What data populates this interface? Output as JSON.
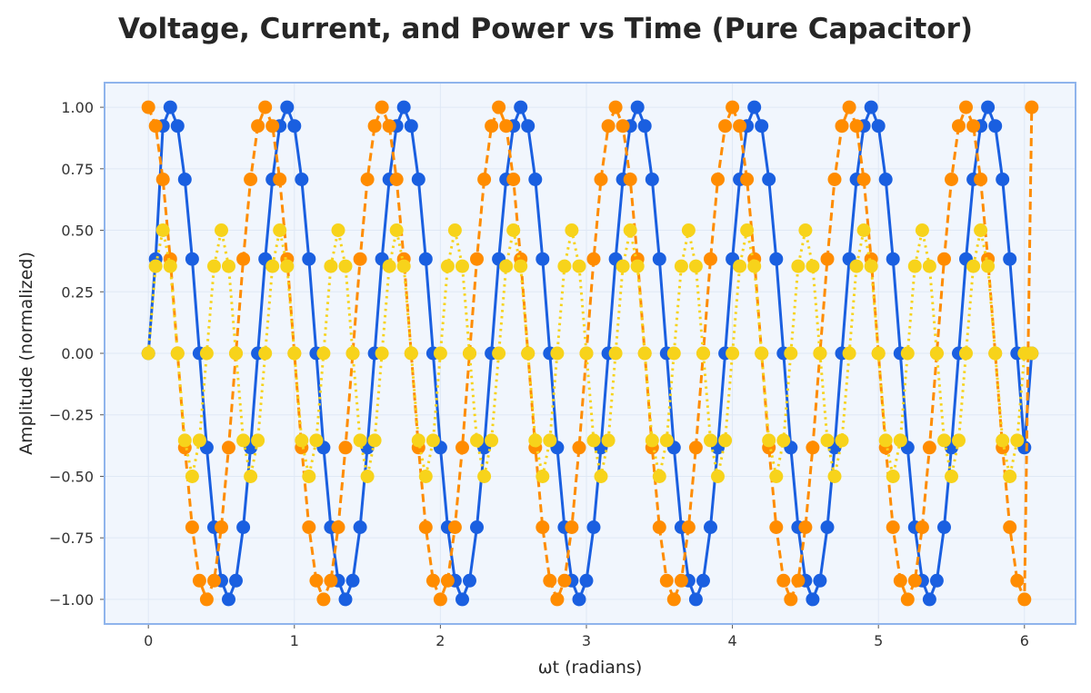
{
  "chart_data": {
    "type": "line",
    "title": "Voltage, Current, and Power vs Time (Pure Capacitor)",
    "xlabel": "ωt (radians)",
    "ylabel": "Amplitude (normalized)",
    "xlim": [
      -0.3,
      6.35
    ],
    "ylim": [
      -1.1,
      1.1
    ],
    "xticks": [
      0,
      1,
      2,
      3,
      4,
      5,
      6
    ],
    "xtick_labels": [
      "0",
      "1",
      "2",
      "3",
      "4",
      "5",
      "6"
    ],
    "yticks": [
      1.0,
      0.75,
      0.5,
      0.25,
      0.0,
      -0.25,
      -0.5,
      -0.75,
      -1.0
    ],
    "ytick_labels": [
      "1.00",
      "0.75",
      "0.50",
      "0.25",
      "0.00",
      "−0.25",
      "−0.50",
      "−0.75",
      "−1.00"
    ],
    "grid": true,
    "legend": "none",
    "x": [
      0.0,
      0.05,
      0.1,
      0.15,
      0.2,
      0.25,
      0.3,
      0.35,
      0.4,
      0.45,
      0.5,
      0.55,
      0.6,
      0.65,
      0.7,
      0.75,
      0.8,
      0.85,
      0.9,
      0.95,
      1.0,
      1.05,
      1.1,
      1.15,
      1.2,
      1.25,
      1.3,
      1.35,
      1.4,
      1.45,
      1.5,
      1.55,
      1.6,
      1.65,
      1.7,
      1.75,
      1.8,
      1.85,
      1.9,
      1.95,
      2.0,
      2.05,
      2.1,
      2.15,
      2.2,
      2.25,
      2.3,
      2.35,
      2.4,
      2.45,
      2.5,
      2.55,
      2.6,
      2.65,
      2.7,
      2.75,
      2.8,
      2.85,
      2.9,
      2.95,
      3.0,
      3.05,
      3.1,
      3.15,
      3.2,
      3.25,
      3.3,
      3.35,
      3.4,
      3.45,
      3.5,
      3.55,
      3.6,
      3.65,
      3.7,
      3.75,
      3.8,
      3.85,
      3.9,
      3.95,
      4.0,
      4.05,
      4.1,
      4.15,
      4.2,
      4.25,
      4.3,
      4.35,
      4.4,
      4.45,
      4.5,
      4.55,
      4.6,
      4.65,
      4.7,
      4.75,
      4.8,
      4.85,
      4.9,
      4.95,
      5.0,
      5.05,
      5.1,
      5.15,
      5.2,
      5.25,
      5.3,
      5.35,
      5.4,
      5.45,
      5.5,
      5.55,
      5.6,
      5.65,
      5.7,
      5.75,
      5.8,
      5.85,
      5.9,
      5.95,
      6.0,
      6.05
    ],
    "series": [
      {
        "color": "#1a5fe0",
        "linestyle": "solid",
        "values": [
          0.0,
          0.383,
          0.924,
          1.0,
          0.924,
          0.707,
          0.383,
          0.0,
          -0.383,
          -0.707,
          -0.924,
          -1.0,
          -0.924,
          -0.707,
          -0.383,
          0.0,
          0.383,
          0.707,
          0.924,
          1.0,
          0.924,
          0.707,
          0.383,
          0.0,
          -0.383,
          -0.707,
          -0.924,
          -1.0,
          -0.924,
          -0.707,
          -0.383,
          0.0,
          0.383,
          0.707,
          0.924,
          1.0,
          0.924,
          0.707,
          0.383,
          0.0,
          -0.383,
          -0.707,
          -0.924,
          -1.0,
          -0.924,
          -0.707,
          -0.383,
          0.0,
          0.383,
          0.707,
          0.924,
          1.0,
          0.924,
          0.707,
          0.383,
          0.0,
          -0.383,
          -0.707,
          -0.924,
          -1.0,
          -0.924,
          -0.707,
          -0.383,
          0.0,
          0.383,
          0.707,
          0.924,
          1.0,
          0.924,
          0.707,
          0.383,
          0.0,
          -0.383,
          -0.707,
          -0.924,
          -1.0,
          -0.924,
          -0.707,
          -0.383,
          0.0,
          0.383,
          0.707,
          0.924,
          1.0,
          0.924,
          0.707,
          0.383,
          0.0,
          -0.383,
          -0.707,
          -0.924,
          -1.0,
          -0.924,
          -0.707,
          -0.383,
          0.0,
          0.383,
          0.707,
          0.924,
          1.0,
          0.924,
          0.707,
          0.383,
          0.0,
          -0.383,
          -0.707,
          -0.924,
          -1.0,
          -0.924,
          -0.707,
          -0.383,
          0.0,
          0.383,
          0.707,
          0.924,
          1.0,
          0.924,
          0.707,
          0.383,
          0.0,
          -0.383,
          0.0
        ]
      },
      {
        "color": "#ff8c00",
        "linestyle": "dashed",
        "values": [
          1.0,
          0.924,
          0.707,
          0.383,
          0.0,
          -0.383,
          -0.707,
          -0.924,
          -1.0,
          -0.924,
          -0.707,
          -0.383,
          0.0,
          0.383,
          0.707,
          0.924,
          1.0,
          0.924,
          0.707,
          0.383,
          0.0,
          -0.383,
          -0.707,
          -0.924,
          -1.0,
          -0.924,
          -0.707,
          -0.383,
          0.0,
          0.383,
          0.707,
          0.924,
          1.0,
          0.924,
          0.707,
          0.383,
          0.0,
          -0.383,
          -0.707,
          -0.924,
          -1.0,
          -0.924,
          -0.707,
          -0.383,
          0.0,
          0.383,
          0.707,
          0.924,
          1.0,
          0.924,
          0.707,
          0.383,
          0.0,
          -0.383,
          -0.707,
          -0.924,
          -1.0,
          -0.924,
          -0.707,
          -0.383,
          0.0,
          0.383,
          0.707,
          0.924,
          1.0,
          0.924,
          0.707,
          0.383,
          0.0,
          -0.383,
          -0.707,
          -0.924,
          -1.0,
          -0.924,
          -0.707,
          -0.383,
          0.0,
          0.383,
          0.707,
          0.924,
          1.0,
          0.924,
          0.707,
          0.383,
          0.0,
          -0.383,
          -0.707,
          -0.924,
          -1.0,
          -0.924,
          -0.707,
          -0.383,
          0.0,
          0.383,
          0.707,
          0.924,
          1.0,
          0.924,
          0.707,
          0.383,
          0.0,
          -0.383,
          -0.707,
          -0.924,
          -1.0,
          -0.924,
          -0.707,
          -0.383,
          0.0,
          0.383,
          0.707,
          0.924,
          1.0,
          0.924,
          0.707,
          0.383,
          0.0,
          -0.383,
          -0.707,
          -0.924,
          -1.0,
          1.0
        ]
      },
      {
        "color": "#f7d31b",
        "linestyle": "dotted",
        "values": [
          0.0,
          0.354,
          0.5,
          0.354,
          0.0,
          -0.354,
          -0.5,
          -0.354,
          0.0,
          0.354,
          0.5,
          0.354,
          0.0,
          -0.354,
          -0.5,
          -0.354,
          0.0,
          0.354,
          0.5,
          0.354,
          0.0,
          -0.354,
          -0.5,
          -0.354,
          0.0,
          0.354,
          0.5,
          0.354,
          0.0,
          -0.354,
          -0.5,
          -0.354,
          0.0,
          0.354,
          0.5,
          0.354,
          0.0,
          -0.354,
          -0.5,
          -0.354,
          0.0,
          0.354,
          0.5,
          0.354,
          0.0,
          -0.354,
          -0.5,
          -0.354,
          0.0,
          0.354,
          0.5,
          0.354,
          0.0,
          -0.354,
          -0.5,
          -0.354,
          0.0,
          0.354,
          0.5,
          0.354,
          0.0,
          -0.354,
          -0.5,
          -0.354,
          0.0,
          0.354,
          0.5,
          0.354,
          0.0,
          -0.354,
          -0.5,
          -0.354,
          0.0,
          0.354,
          0.5,
          0.354,
          0.0,
          -0.354,
          -0.5,
          -0.354,
          0.0,
          0.354,
          0.5,
          0.354,
          0.0,
          -0.354,
          -0.5,
          -0.354,
          0.0,
          0.354,
          0.5,
          0.354,
          0.0,
          -0.354,
          -0.5,
          -0.354,
          0.0,
          0.354,
          0.5,
          0.354,
          0.0,
          -0.354,
          -0.5,
          -0.354,
          0.0,
          0.354,
          0.5,
          0.354,
          0.0,
          -0.354,
          -0.5,
          -0.354,
          0.0,
          0.354,
          0.5,
          0.354,
          0.0,
          -0.354,
          -0.5,
          -0.354,
          0.0,
          0.0
        ]
      }
    ]
  },
  "colors": {
    "plot_background": "#f1f6fd",
    "plot_border": "#8fb4ec",
    "grid": "#dfe8f5"
  }
}
